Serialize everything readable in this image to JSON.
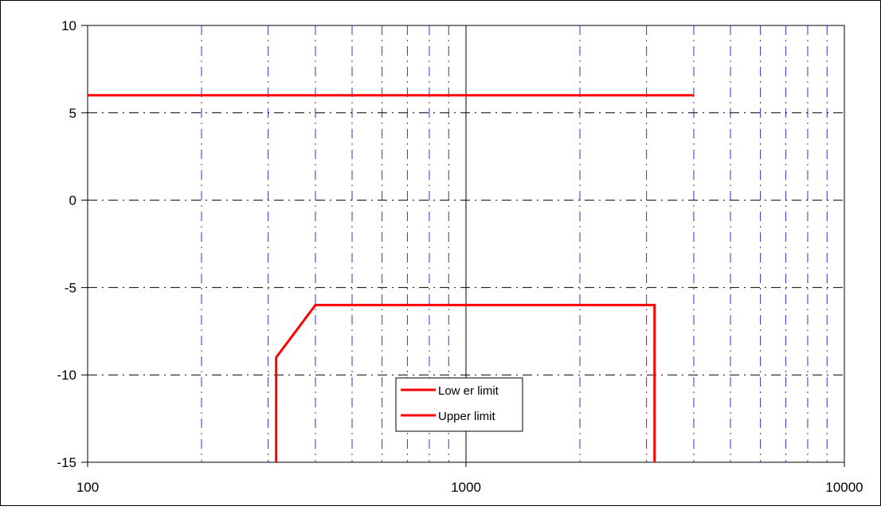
{
  "chart_data": {
    "type": "line",
    "title": "",
    "xlabel": "",
    "ylabel": "",
    "x_scale": "log",
    "xlim": [
      100,
      10000
    ],
    "ylim": [
      -15,
      10
    ],
    "x_ticks": [
      100,
      1000,
      10000
    ],
    "x_tick_labels": [
      "100",
      "1000",
      "10000"
    ],
    "y_ticks": [
      10,
      5,
      0,
      -5,
      -10,
      -15
    ],
    "y_tick_labels": [
      "10",
      "5",
      "0",
      "-5",
      "-10",
      "-15"
    ],
    "x_minor_gridlines": [
      200,
      300,
      400,
      500,
      600,
      700,
      800,
      900,
      2000,
      3000,
      4000,
      5000,
      6000,
      7000,
      8000,
      9000
    ],
    "grid": true,
    "gridline_color": "#3333cc",
    "legend_position": "center-bottom",
    "series": [
      {
        "name": "Low er limit",
        "color": "#ff0000",
        "points": [
          [
            315,
            -15
          ],
          [
            315,
            -9
          ],
          [
            400,
            -6
          ],
          [
            3150,
            -6
          ],
          [
            3150,
            -15
          ]
        ]
      },
      {
        "name": "Upper limit",
        "color": "#ff0000",
        "points": [
          [
            100,
            6
          ],
          [
            4000,
            6
          ]
        ]
      }
    ]
  }
}
